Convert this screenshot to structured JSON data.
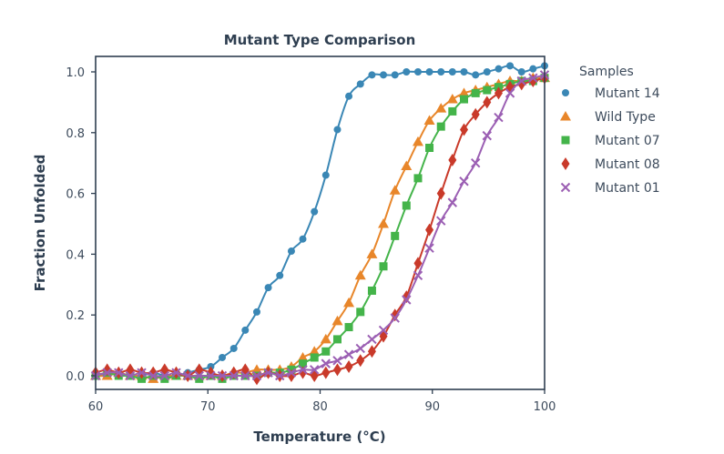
{
  "chart_data": {
    "type": "scatter",
    "title": "Mutant Type Comparison",
    "xlabel": "Temperature (°C)",
    "ylabel": "Fraction Unfolded",
    "xlim": [
      60,
      100
    ],
    "ylim": [
      -0.04,
      1.05
    ],
    "xticks": [
      "60",
      "70",
      "80",
      "90",
      "100"
    ],
    "xtick_values": [
      60,
      70,
      80,
      90,
      100
    ],
    "yticks": [
      "0.0",
      "0.2",
      "0.4",
      "0.6",
      "0.8",
      "1.0"
    ],
    "ytick_values": [
      0,
      0.2,
      0.4,
      0.6,
      0.8,
      1.0
    ],
    "grid": false,
    "legend": {
      "title": "Samples",
      "placement": "outside-right-top"
    },
    "x": [
      60.0,
      61.03,
      62.05,
      63.08,
      64.1,
      65.13,
      66.15,
      67.18,
      68.21,
      69.23,
      70.26,
      71.28,
      72.31,
      73.33,
      74.36,
      75.38,
      76.41,
      77.44,
      78.46,
      79.49,
      80.51,
      81.54,
      82.56,
      83.59,
      84.62,
      85.64,
      86.67,
      87.69,
      88.72,
      89.74,
      90.77,
      91.79,
      92.82,
      93.85,
      94.87,
      95.9,
      96.92,
      97.95,
      98.97,
      100.0
    ],
    "series": [
      {
        "name": "Mutant 14",
        "marker": "circle",
        "color": "#3a87b5",
        "values": [
          0.01,
          0.0,
          0.01,
          0.0,
          0.0,
          0.01,
          0.0,
          0.0,
          0.01,
          0.02,
          0.03,
          0.06,
          0.09,
          0.15,
          0.21,
          0.29,
          0.33,
          0.41,
          0.45,
          0.54,
          0.66,
          0.81,
          0.92,
          0.96,
          0.99,
          0.99,
          0.99,
          1.0,
          1.0,
          1.0,
          1.0,
          1.0,
          1.0,
          0.99,
          1.0,
          1.01,
          1.02,
          1.0,
          1.01,
          1.02
        ]
      },
      {
        "name": "Wild Type",
        "marker": "triangle",
        "color": "#e8862a",
        "values": [
          0.0,
          0.0,
          0.01,
          0.0,
          0.0,
          -0.01,
          0.0,
          0.0,
          0.0,
          0.0,
          0.0,
          0.0,
          0.01,
          0.01,
          0.02,
          0.02,
          0.02,
          0.03,
          0.06,
          0.08,
          0.12,
          0.18,
          0.24,
          0.33,
          0.4,
          0.5,
          0.61,
          0.69,
          0.77,
          0.84,
          0.88,
          0.91,
          0.93,
          0.94,
          0.95,
          0.96,
          0.97,
          0.97,
          0.98,
          0.98
        ]
      },
      {
        "name": "Mutant 07",
        "marker": "square",
        "color": "#44b44a",
        "values": [
          0.0,
          0.01,
          0.0,
          0.0,
          -0.01,
          0.0,
          -0.01,
          0.0,
          0.0,
          -0.01,
          0.0,
          -0.01,
          0.0,
          0.0,
          0.0,
          0.01,
          0.01,
          0.02,
          0.04,
          0.06,
          0.08,
          0.12,
          0.16,
          0.21,
          0.28,
          0.36,
          0.46,
          0.56,
          0.65,
          0.75,
          0.82,
          0.87,
          0.91,
          0.93,
          0.94,
          0.95,
          0.96,
          0.97,
          0.97,
          0.98
        ]
      },
      {
        "name": "Mutant 08",
        "marker": "diamond",
        "color": "#c93a2a",
        "values": [
          0.01,
          0.02,
          0.01,
          0.02,
          0.01,
          0.01,
          0.02,
          0.01,
          0.0,
          0.02,
          0.01,
          0.0,
          0.01,
          0.02,
          -0.01,
          0.01,
          0.0,
          0.0,
          0.01,
          0.0,
          0.01,
          0.02,
          0.03,
          0.05,
          0.08,
          0.13,
          0.2,
          0.26,
          0.37,
          0.48,
          0.6,
          0.71,
          0.81,
          0.86,
          0.9,
          0.93,
          0.95,
          0.96,
          0.97,
          0.98
        ]
      },
      {
        "name": "Mutant 01",
        "marker": "x",
        "color": "#9b5fb3",
        "values": [
          0.0,
          0.01,
          0.01,
          0.0,
          0.01,
          0.0,
          0.0,
          0.01,
          0.0,
          0.0,
          0.0,
          0.0,
          0.0,
          0.0,
          0.0,
          0.01,
          0.0,
          0.01,
          0.02,
          0.02,
          0.04,
          0.05,
          0.07,
          0.09,
          0.12,
          0.15,
          0.19,
          0.25,
          0.33,
          0.42,
          0.51,
          0.57,
          0.64,
          0.7,
          0.79,
          0.85,
          0.93,
          0.97,
          0.98,
          0.99
        ]
      }
    ]
  }
}
